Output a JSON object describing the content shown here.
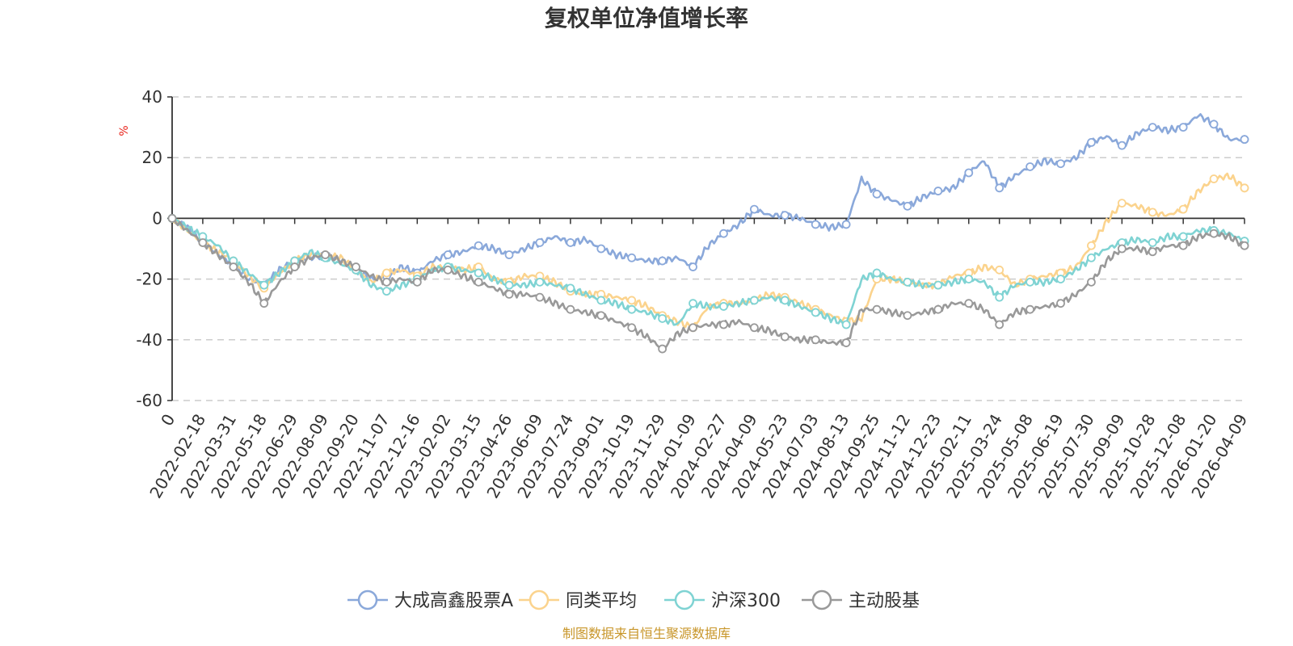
{
  "chart_data": {
    "type": "line",
    "title": "复权单位净值增长率",
    "ylabel": "%",
    "xlabel": "",
    "ylim": [
      -60,
      40
    ],
    "yticks": [
      40,
      20,
      0,
      -20,
      -40,
      -60
    ],
    "x_range": [
      "2022-01-04",
      "2026-04-16"
    ],
    "x_ticks": [
      "0",
      "2022-02-18",
      "2022-03-31",
      "2022-05-18",
      "2022-06-29",
      "2022-08-09",
      "2022-09-20",
      "2022-11-07",
      "2022-12-16",
      "2023-02-02",
      "2023-03-15",
      "2023-04-26",
      "2023-06-09",
      "2023-07-24",
      "2023-09-01",
      "2023-10-19",
      "2023-11-29",
      "2024-01-09",
      "2024-02-27",
      "2024-04-09",
      "2024-05-23",
      "2024-07-03",
      "2024-08-13",
      "2024-09-25",
      "2024-11-12",
      "2024-12-23",
      "2025-02-11",
      "2025-03-24",
      "2025-05-08",
      "2025-06-19",
      "2025-07-30",
      "2025-09-09",
      "2025-10-28",
      "2025-12-08",
      "2026-01-20",
      "2026-04-09"
    ],
    "grid": true,
    "legend_position": "bottom-center",
    "series": [
      {
        "name": "大成高鑫股票A",
        "color": "#8aa8da",
        "values": [
          0,
          -3,
          -8,
          -12,
          -15,
          -20,
          -22,
          -17,
          -14,
          -13,
          -12,
          -14,
          -17,
          -20,
          -19,
          -16,
          -18,
          -14,
          -12,
          -11,
          -9,
          -10,
          -12,
          -10,
          -8,
          -6,
          -8,
          -7,
          -10,
          -12,
          -13,
          -14,
          -14,
          -13,
          -16,
          -9,
          -5,
          -2,
          3,
          1,
          1,
          0,
          -2,
          -3,
          -2,
          13,
          8,
          6,
          4,
          7,
          9,
          10,
          15,
          19,
          10,
          14,
          17,
          19,
          18,
          20,
          25,
          27,
          24,
          28,
          30,
          29,
          30,
          34,
          31,
          26,
          26
        ]
      },
      {
        "name": "同类平均",
        "color": "#fbd38d",
        "values": [
          0,
          -4,
          -8,
          -11,
          -14,
          -19,
          -23,
          -18,
          -14,
          -12,
          -12,
          -13,
          -17,
          -21,
          -18,
          -17,
          -19,
          -16,
          -16,
          -17,
          -16,
          -20,
          -21,
          -19,
          -19,
          -21,
          -24,
          -25,
          -25,
          -26,
          -27,
          -29,
          -32,
          -34,
          -36,
          -29,
          -28,
          -28,
          -27,
          -25,
          -26,
          -28,
          -30,
          -32,
          -34,
          -33,
          -20,
          -20,
          -21,
          -22,
          -22,
          -19,
          -18,
          -16,
          -17,
          -22,
          -20,
          -19,
          -18,
          -16,
          -9,
          -1,
          5,
          4,
          2,
          1,
          3,
          9,
          13,
          14,
          10
        ]
      },
      {
        "name": "沪深300",
        "color": "#7fd3d3",
        "values": [
          0,
          -3,
          -6,
          -9,
          -14,
          -18,
          -22,
          -18,
          -14,
          -11,
          -13,
          -15,
          -17,
          -22,
          -24,
          -22,
          -20,
          -17,
          -16,
          -17,
          -18,
          -20,
          -22,
          -22,
          -21,
          -22,
          -23,
          -25,
          -27,
          -28,
          -30,
          -31,
          -33,
          -35,
          -28,
          -29,
          -29,
          -28,
          -27,
          -26,
          -27,
          -29,
          -31,
          -33,
          -35,
          -20,
          -18,
          -20,
          -21,
          -22,
          -22,
          -21,
          -20,
          -21,
          -26,
          -22,
          -21,
          -21,
          -20,
          -17,
          -13,
          -10,
          -8,
          -7,
          -8,
          -6,
          -6,
          -4,
          -4,
          -5,
          -7.5
        ]
      },
      {
        "name": "主动股基",
        "color": "#999999",
        "values": [
          0,
          -4,
          -8,
          -12,
          -16,
          -21,
          -28,
          -21,
          -16,
          -13,
          -12,
          -14,
          -16,
          -19,
          -21,
          -20,
          -21,
          -17,
          -17,
          -19,
          -21,
          -23,
          -25,
          -25,
          -26,
          -28,
          -30,
          -31,
          -32,
          -34,
          -36,
          -39,
          -43,
          -38,
          -36,
          -35,
          -35,
          -34,
          -36,
          -37,
          -39,
          -40,
          -40,
          -41,
          -41,
          -30,
          -30,
          -31,
          -32,
          -31,
          -30,
          -28,
          -28,
          -30,
          -35,
          -31,
          -30,
          -29,
          -28,
          -25,
          -21,
          -14,
          -10,
          -10,
          -11,
          -9,
          -9,
          -6,
          -5,
          -6,
          -9
        ]
      }
    ]
  },
  "source": "制图数据来自恒生聚源数据库"
}
